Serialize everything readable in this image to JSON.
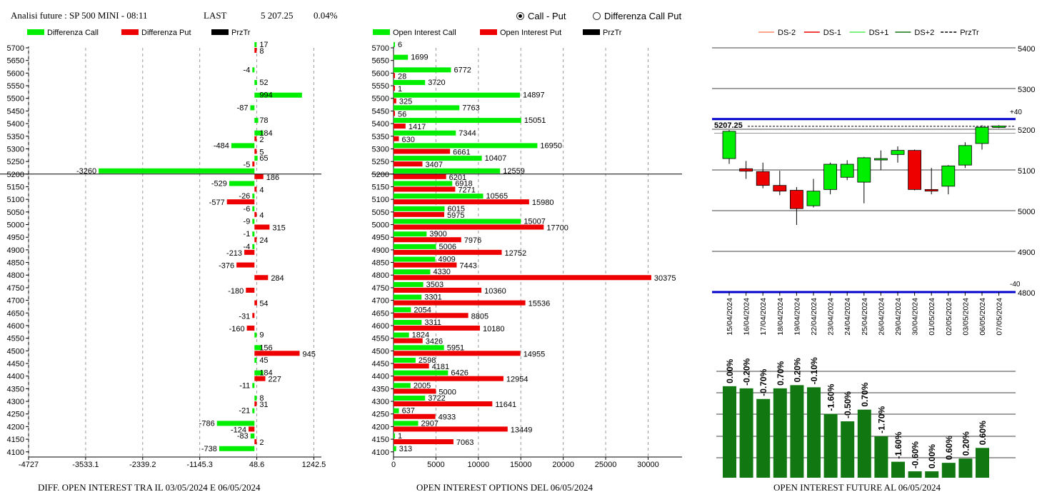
{
  "header": {
    "title": "Analisi future : SP 500 MINI - 08:11",
    "last_label": "LAST",
    "last_value": "5 207.25",
    "change": "0.04%"
  },
  "mode_options": [
    {
      "label": "Call - Put",
      "selected": true
    },
    {
      "label": "Differenza Call Put",
      "selected": false
    }
  ],
  "footer": {
    "left": "DIFF. OPEN INTEREST TRA IL 03/05/2024 E 06/05/2024",
    "middle": "OPEN INTEREST OPTIONS DEL 06/05/2024",
    "right": "OPEN INTEREST FUTURE AL 06/05/2024"
  },
  "colors": {
    "call": "#00ee00",
    "put": "#ee0000",
    "price": "#000000",
    "blue": "#0000cc",
    "dark_green": "#117711"
  },
  "chart_data": [
    {
      "type": "bar",
      "orientation": "horizontal",
      "legend": [
        "Differenza Call",
        "Differenza Put",
        "PrzTr"
      ],
      "strikes": [
        5700,
        5650,
        5600,
        5550,
        5500,
        5450,
        5400,
        5350,
        5300,
        5250,
        5200,
        5150,
        5100,
        5050,
        5000,
        4950,
        4900,
        4850,
        4800,
        4750,
        4700,
        4650,
        4600,
        4550,
        4500,
        4450,
        4400,
        4350,
        4300,
        4250,
        4200,
        4150,
        4100
      ],
      "series": [
        {
          "name": "Differenza Call",
          "values": [
            17,
            null,
            -4,
            52,
            994,
            -87,
            78,
            184,
            -484,
            65,
            -3260,
            -529,
            -26,
            -6,
            -9,
            -1,
            -4,
            null,
            null,
            null,
            null,
            null,
            null,
            9,
            156,
            45,
            184,
            -11,
            8,
            -21,
            -786,
            -83,
            -738
          ]
        },
        {
          "name": "Differenza Put",
          "values": [
            8,
            null,
            null,
            null,
            null,
            null,
            null,
            2,
            5,
            -5,
            186,
            4,
            -577,
            4,
            315,
            24,
            -213,
            -376,
            284,
            -180,
            54,
            -31,
            -160,
            null,
            945,
            null,
            227,
            null,
            31,
            null,
            -124,
            2,
            null
          ]
        }
      ],
      "price_strike": 5200,
      "xticks": [
        "-4727",
        "-3533.1",
        "-2339.2",
        "-1145.3",
        "48.6",
        "1242.5"
      ],
      "xlim": [
        -4727,
        1400
      ]
    },
    {
      "type": "bar",
      "orientation": "horizontal",
      "legend": [
        "Open Interest Call",
        "Open Interest Put",
        "PrzTr"
      ],
      "strikes": [
        5700,
        5650,
        5600,
        5550,
        5500,
        5450,
        5400,
        5350,
        5300,
        5250,
        5200,
        5150,
        5100,
        5050,
        5000,
        4950,
        4900,
        4850,
        4800,
        4750,
        4700,
        4650,
        4600,
        4550,
        4500,
        4450,
        4400,
        4350,
        4300,
        4250,
        4200,
        4150,
        4100
      ],
      "series": [
        {
          "name": "Open Interest Call",
          "values": [
            6,
            1699,
            6772,
            3720,
            14897,
            7763,
            15051,
            7344,
            16950,
            10407,
            12559,
            6918,
            10565,
            6015,
            15007,
            3900,
            5006,
            4909,
            4330,
            3503,
            3301,
            2054,
            3311,
            1824,
            5951,
            2598,
            6426,
            2005,
            3722,
            637,
            2907,
            1,
            313
          ]
        },
        {
          "name": "Open Interest Put",
          "values": [
            null,
            null,
            28,
            1,
            325,
            56,
            1417,
            630,
            6661,
            3407,
            6201,
            7271,
            15980,
            5975,
            17700,
            7976,
            12752,
            7443,
            30375,
            10360,
            15536,
            8805,
            10180,
            3426,
            14955,
            4181,
            12954,
            5000,
            11641,
            4933,
            13449,
            7063,
            null
          ]
        }
      ],
      "price_strike": 5200,
      "xticks": [
        "0",
        "5000",
        "10000",
        "15000",
        "20000",
        "25000",
        "30000"
      ],
      "xlim": [
        0,
        34000
      ]
    },
    {
      "type": "candlestick",
      "legend": [
        "DS-2",
        "DS-1",
        "DS+1",
        "DS+2",
        "PrzTr"
      ],
      "dates": [
        "15/04/2024",
        "16/04/2024",
        "17/04/2024",
        "18/04/2024",
        "19/04/2024",
        "22/04/2024",
        "23/04/2024",
        "24/04/2024",
        "25/04/2024",
        "26/04/2024",
        "29/04/2024",
        "30/04/2024",
        "01/05/2024",
        "02/05/2024",
        "03/05/2024",
        "06/05/2024",
        "07/05/2024"
      ],
      "ohlc": [
        [
          5128,
          5198,
          5115,
          5195
        ],
        [
          5103,
          5122,
          5078,
          5097
        ],
        [
          5096,
          5118,
          5055,
          5062
        ],
        [
          5062,
          5098,
          5038,
          5048
        ],
        [
          5050,
          5058,
          4965,
          5005
        ],
        [
          5012,
          5078,
          5008,
          5048
        ],
        [
          5052,
          5118,
          5040,
          5114
        ],
        [
          5082,
          5124,
          5075,
          5114
        ],
        [
          5070,
          5132,
          5018,
          5130
        ],
        [
          5128,
          5148,
          5100,
          5128
        ],
        [
          5138,
          5158,
          5118,
          5148
        ],
        [
          5148,
          5150,
          5050,
          5052
        ],
        [
          5052,
          5105,
          5040,
          5048
        ],
        [
          5060,
          5112,
          5040,
          5110
        ],
        [
          5112,
          5168,
          5105,
          5160
        ],
        [
          5165,
          5210,
          5150,
          5205
        ],
        [
          5205,
          5210,
          5203,
          5208
        ]
      ],
      "price_label": "5207.25",
      "price": 5207.25,
      "yticks": [
        "5400",
        "5300",
        "5200",
        "5100",
        "5000",
        "4900",
        "4800"
      ],
      "ylim": [
        4800,
        5400
      ],
      "upper_band": 5225,
      "upper_band_label": "+40",
      "lower_band": 4800,
      "lower_band_label": "-40",
      "ref_lines": [
        5200,
        5190
      ]
    },
    {
      "type": "bar",
      "categories": [
        "15/04/2024",
        "16/04/2024",
        "17/04/2024",
        "18/04/2024",
        "19/04/2024",
        "22/04/2024",
        "23/04/2024",
        "24/04/2024",
        "25/04/2024",
        "26/04/2024",
        "29/04/2024",
        "30/04/2024",
        "01/05/2024",
        "02/05/2024",
        "03/05/2024",
        "06/05/2024",
        "07/05/2024"
      ],
      "values": [
        0.86,
        0.84,
        0.74,
        0.84,
        0.87,
        0.85,
        0.6,
        0.53,
        0.64,
        0.39,
        0.15,
        0.06,
        0.06,
        0.14,
        0.18,
        0.28,
        0
      ],
      "labels": [
        "0.00%",
        "-0.20%",
        "-0.70%",
        "0.70%",
        "0.20%",
        "-0.10%",
        "-1.60%",
        "-0.50%",
        "0.70%",
        "-1.70%",
        "-1.60%",
        "-0.60%",
        "0.00%",
        "0.60%",
        "0.20%",
        "0.60%",
        ""
      ],
      "ylim": [
        0,
        1
      ],
      "grid": true
    }
  ]
}
